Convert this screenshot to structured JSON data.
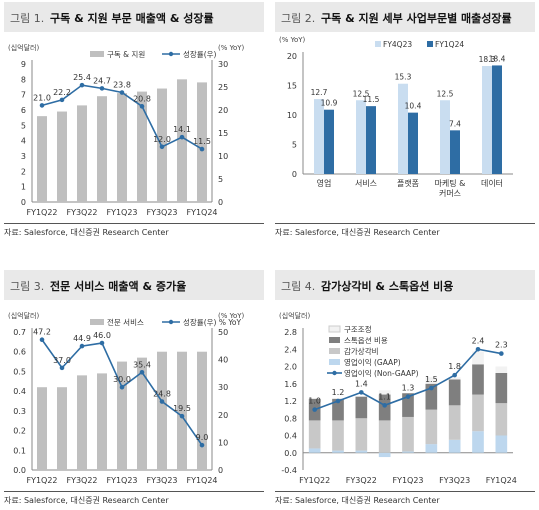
{
  "source_text": "자료: Salesforce, 대신증권 Research Center",
  "panels": [
    {
      "num": "그림 1.",
      "title": "구독 & 지원 부문 매출액 & 성장률"
    },
    {
      "num": "그림 2.",
      "title": "구독 & 지원 세부 사업부문별 매출성장률"
    },
    {
      "num": "그림 3.",
      "title": "전문 서비스 매출액 & 증가율"
    },
    {
      "num": "그림 4.",
      "title": "감가상각비 & 스톡옵션 비용"
    }
  ],
  "chart_data": [
    {
      "type": "bar",
      "ylabel": "(십억달러)",
      "y2label": "(% YoY)",
      "ylim": [
        0,
        9
      ],
      "yticks": [
        0,
        1,
        2,
        3,
        4,
        5,
        6,
        7,
        8,
        9
      ],
      "y2lim": [
        0,
        30
      ],
      "y2ticks": [
        0,
        5,
        10,
        15,
        20,
        25,
        30
      ],
      "categories": [
        "FY1Q22",
        "FY2Q22",
        "FY3Q22",
        "FY4Q22",
        "FY1Q23",
        "FY2Q23",
        "FY3Q23",
        "FY4Q23",
        "FY1Q24"
      ],
      "xticks": [
        "FY1Q22",
        "FY3Q22",
        "FY1Q23",
        "FY3Q23",
        "FY1Q24"
      ],
      "series": [
        {
          "name": "구독 & 지원",
          "kind": "bar",
          "axis": "left",
          "color": "#bfbfbf",
          "values": [
            5.6,
            5.9,
            6.3,
            6.9,
            7.1,
            7.2,
            7.4,
            8.0,
            7.8
          ]
        },
        {
          "name": "성장률(우)",
          "kind": "line",
          "axis": "right",
          "color": "#2e6da4",
          "values": [
            21.0,
            22.2,
            25.4,
            24.7,
            23.8,
            20.8,
            12.0,
            14.1,
            11.5
          ]
        }
      ],
      "legend": "top-right"
    },
    {
      "type": "bar",
      "ylabel": "(% YoY)",
      "ylim": [
        0,
        20
      ],
      "yticks": [
        0,
        5,
        10,
        15,
        20
      ],
      "categories": [
        "영업",
        "서비스",
        "플랫폼",
        "마케팅 &\n커머스",
        "데이터"
      ],
      "series": [
        {
          "name": "FY4Q23",
          "color": "#c9ddf0",
          "values": [
            12.7,
            12.5,
            15.3,
            12.5,
            18.3
          ]
        },
        {
          "name": "FY1Q24",
          "color": "#2e6da4",
          "values": [
            10.9,
            11.5,
            10.4,
            7.4,
            18.4
          ]
        }
      ],
      "legend": "top"
    },
    {
      "type": "bar",
      "ylabel": "(십억달러)",
      "y2label": "(% YoY)",
      "ylim": [
        0,
        0.7
      ],
      "yticks": [
        0,
        0.1,
        0.2,
        0.3,
        0.4,
        0.5,
        0.6,
        0.7
      ],
      "y2lim": [
        0,
        50
      ],
      "y2ticks": [
        0,
        10,
        20,
        30,
        40,
        50
      ],
      "categories": [
        "FY1Q22",
        "FY2Q22",
        "FY3Q22",
        "FY4Q22",
        "FY1Q23",
        "FY2Q23",
        "FY3Q23",
        "FY4Q23",
        "FY1Q24"
      ],
      "xticks": [
        "FY1Q22",
        "FY3Q22",
        "FY1Q23",
        "FY3Q23",
        "FY1Q24"
      ],
      "series": [
        {
          "name": "전문 서비스",
          "kind": "bar",
          "axis": "left",
          "color": "#bfbfbf",
          "values": [
            0.42,
            0.42,
            0.48,
            0.49,
            0.55,
            0.57,
            0.6,
            0.6,
            0.6
          ]
        },
        {
          "name": "성장률(우) % YoY",
          "kind": "line",
          "axis": "right",
          "color": "#2e6da4",
          "values": [
            47.2,
            37.0,
            44.9,
            46.0,
            30.0,
            35.4,
            24.8,
            19.5,
            9.0
          ]
        }
      ],
      "legend": "top-right"
    },
    {
      "type": "bar",
      "ylabel": "(십억달러)",
      "ylim": [
        -0.4,
        2.8
      ],
      "yticks": [
        -0.4,
        0.0,
        0.4,
        0.8,
        1.2,
        1.6,
        2.0,
        2.4,
        2.8
      ],
      "categories": [
        "FY1Q22",
        "FY2Q22",
        "FY3Q22",
        "FY4Q22",
        "FY1Q23",
        "FY2Q23",
        "FY3Q23",
        "FY4Q23",
        "FY1Q24"
      ],
      "xticks": [
        "FY1Q22",
        "FY3Q22",
        "FY1Q23",
        "FY3Q23",
        "FY1Q24"
      ],
      "series": [
        {
          "name": "구조조정",
          "kind": "bar",
          "stack": true,
          "color": "#f2f2f2",
          "values": [
            0,
            0,
            0,
            0.1,
            0,
            0.15,
            0.05,
            0.3,
            0.15
          ]
        },
        {
          "name": "스톡옵션 비용",
          "kind": "bar",
          "stack": true,
          "color": "#7f7f7f",
          "values": [
            0.5,
            0.5,
            0.5,
            0.6,
            0.55,
            0.6,
            0.6,
            0.7,
            0.7
          ]
        },
        {
          "name": "감가상각비",
          "kind": "bar",
          "stack": true,
          "color": "#c8c8c8",
          "values": [
            0.65,
            0.7,
            0.75,
            0.75,
            0.8,
            0.8,
            0.8,
            0.85,
            0.75
          ]
        },
        {
          "name": "영업이익 (GAAP)",
          "kind": "bar",
          "stack": true,
          "color": "#bdd7ee",
          "values": [
            0.1,
            0.05,
            0.05,
            -0.1,
            0.03,
            0.2,
            0.3,
            0.5,
            0.4
          ]
        },
        {
          "name": "영업이익 (Non-GAAP)",
          "kind": "line",
          "color": "#2e6da4",
          "values": [
            1.0,
            1.2,
            1.4,
            1.1,
            1.3,
            1.5,
            1.8,
            2.4,
            2.3
          ]
        }
      ],
      "legend": "top-left"
    }
  ]
}
